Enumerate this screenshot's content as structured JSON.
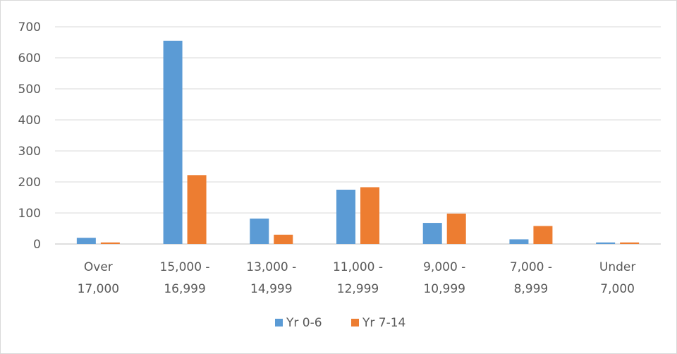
{
  "chart_data": {
    "type": "bar",
    "title": "",
    "xlabel": "",
    "ylabel": "",
    "ylim": [
      0,
      700
    ],
    "yticks": [
      0,
      100,
      200,
      300,
      400,
      500,
      600,
      700
    ],
    "yticks_labels": [
      "0",
      "100",
      "200",
      "300",
      "400",
      "500",
      "600",
      "700"
    ],
    "grid": true,
    "legend_position": "bottom",
    "categories": [
      [
        "Over",
        "17,000"
      ],
      [
        "15,000 -",
        "16,999"
      ],
      [
        "13,000 -",
        "14,999"
      ],
      [
        "11,000 -",
        "12,999"
      ],
      [
        "9,000 -",
        "10,999"
      ],
      [
        "7,000 -",
        "8,999"
      ],
      [
        "Under",
        "7,000"
      ]
    ],
    "series": [
      {
        "name": "Yr 0-6",
        "color": "#5b9bd5",
        "values": [
          20,
          655,
          82,
          175,
          68,
          15,
          5
        ]
      },
      {
        "name": "Yr 7-14",
        "color": "#ed7d31",
        "values": [
          5,
          222,
          30,
          183,
          98,
          58,
          5
        ]
      }
    ]
  }
}
